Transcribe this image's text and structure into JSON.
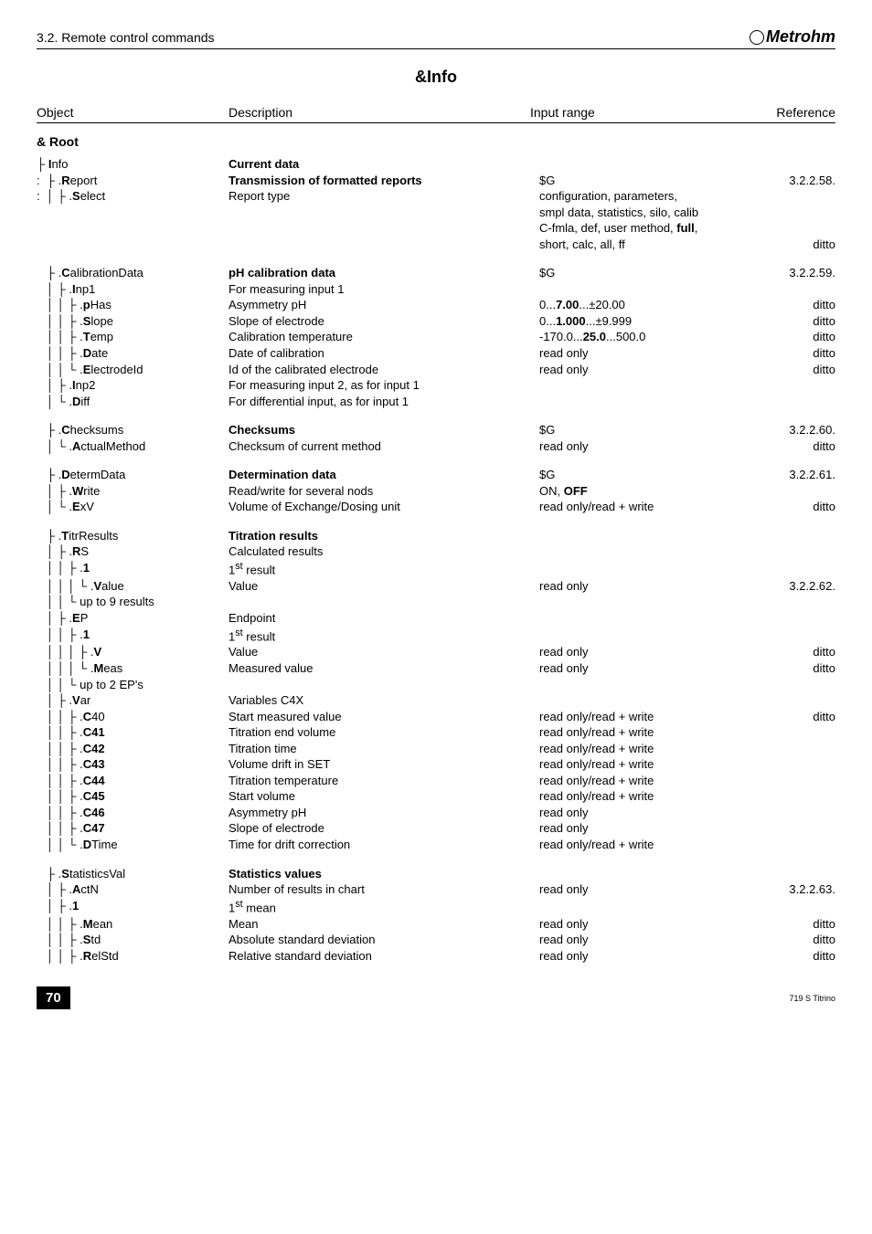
{
  "header": {
    "section_title": "3.2. Remote control commands",
    "brand": "Metrohm"
  },
  "page_title": "&Info",
  "columns": {
    "object": "Object",
    "description": "Description",
    "input_range": "Input range",
    "reference": "Reference"
  },
  "root_label": "& Root",
  "blocks": [
    {
      "rows": [
        {
          "obj_html": "├ <b>I</b>nfo",
          "desc_html": "<b>Current data</b>",
          "range": "",
          "ref": ""
        },
        {
          "obj_html": ":  ├ .<b>R</b>eport",
          "desc_html": "<b>Transmission of formatted reports</b>",
          "range": "$G",
          "ref": "3.2.2.58."
        },
        {
          "obj_html": ":  │ ├ .<b>S</b>elect",
          "desc_html": "Report type",
          "range": "configuration, parameters,",
          "ref": ""
        },
        {
          "obj_html": "",
          "desc_html": "",
          "range": "smpl data, statistics, silo, calib",
          "ref": ""
        },
        {
          "obj_html": "",
          "desc_html": "",
          "range_html": "C-fmla, def, user method, <b>full</b>,",
          "ref": ""
        },
        {
          "obj_html": "",
          "desc_html": "",
          "range": "short, calc, all, ff",
          "ref": "ditto"
        }
      ]
    },
    {
      "rows": [
        {
          "obj_html": "   ├ .<b>C</b>alibrationData",
          "desc_html": "<b>pH calibration data</b>",
          "range": "$G",
          "ref": "3.2.2.59."
        },
        {
          "obj_html": "   │ ├ .<b>I</b>np1",
          "desc_html": "For measuring input 1",
          "range": "",
          "ref": ""
        },
        {
          "obj_html": "   │ │ ├ .<b>p</b>Has",
          "desc_html": "Asymmetry pH",
          "range_html": "0...<b>7.00</b>...±20.00",
          "ref": "ditto"
        },
        {
          "obj_html": "   │ │ ├ .<b>S</b>lope",
          "desc_html": "Slope of electrode",
          "range_html": "0...<b>1.000</b>...±9.999",
          "ref": "ditto"
        },
        {
          "obj_html": "   │ │ ├ .<b>T</b>emp",
          "desc_html": "Calibration temperature",
          "range_html": "-170.0...<b>25.0</b>...500.0",
          "ref": "ditto"
        },
        {
          "obj_html": "   │ │ ├ .<b>D</b>ate",
          "desc_html": "Date of calibration",
          "range": "read only",
          "ref": "ditto"
        },
        {
          "obj_html": "   │ │ └ .<b>E</b>lectrodeId",
          "desc_html": "Id of the calibrated electrode",
          "range": "read only",
          "ref": "ditto"
        },
        {
          "obj_html": "   │ ├ .<b>I</b>np2",
          "desc_html": "For measuring input 2, as for input 1",
          "range": "",
          "ref": ""
        },
        {
          "obj_html": "   │ └ .<b>D</b>iff",
          "desc_html": "For differential input, as for input 1",
          "range": "",
          "ref": ""
        }
      ]
    },
    {
      "rows": [
        {
          "obj_html": "   ├ .<b>C</b>hecksums",
          "desc_html": "<b>Checksums</b>",
          "range": "$G",
          "ref": "3.2.2.60."
        },
        {
          "obj_html": "   │ └ .<b>A</b>ctualMethod",
          "desc_html": "Checksum of current method",
          "range": "read only",
          "ref": "ditto"
        }
      ]
    },
    {
      "rows": [
        {
          "obj_html": "   ├ .<b>D</b>etermData",
          "desc_html": "<b>Determination data</b>",
          "range": "$G",
          "ref": "3.2.2.61."
        },
        {
          "obj_html": "   │ ├ .<b>W</b>rite",
          "desc_html": "Read/write for several nods",
          "range_html": "ON, <b>OFF</b>",
          "ref": ""
        },
        {
          "obj_html": "   │ └ .<b>E</b>xV",
          "desc_html": "Volume of Exchange/Dosing unit",
          "range": "read only/read + write",
          "ref": "ditto"
        }
      ]
    },
    {
      "rows": [
        {
          "obj_html": "   ├ .<b>T</b>itrResults",
          "desc_html": "<b>Titration results</b>",
          "range": "",
          "ref": ""
        },
        {
          "obj_html": "   │ ├ .<b>R</b>S",
          "desc_html": "Calculated results",
          "range": "",
          "ref": ""
        },
        {
          "obj_html": "   │ │ ├ .<b>1</b>",
          "desc_html": "1<sup>st</sup> result",
          "range": "",
          "ref": ""
        },
        {
          "obj_html": "   │ │ │ └ .<b>V</b>alue",
          "desc_html": "Value",
          "range": "read only",
          "ref": "3.2.2.62."
        },
        {
          "obj_html": "   │ │ └ up to 9 results",
          "desc_html": "",
          "range": "",
          "ref": ""
        },
        {
          "obj_html": "   │ ├ .<b>E</b>P",
          "desc_html": "Endpoint",
          "range": "",
          "ref": ""
        },
        {
          "obj_html": "   │ │ ├ .<b>1</b>",
          "desc_html": "1<sup>st</sup> result",
          "range": "",
          "ref": ""
        },
        {
          "obj_html": "   │ │ │ ├ .<b>V</b>",
          "desc_html": "Value",
          "range": "read only",
          "ref": "ditto"
        },
        {
          "obj_html": "   │ │ │ └ .<b>M</b>eas",
          "desc_html": "Measured value",
          "range": "read only",
          "ref": "ditto"
        },
        {
          "obj_html": "   │ │ └ up to 2 EP's",
          "desc_html": "",
          "range": "",
          "ref": ""
        },
        {
          "obj_html": "   │ ├ .<b>V</b>ar",
          "desc_html": "Variables C4X",
          "range": "",
          "ref": ""
        },
        {
          "obj_html": "   │ │ ├ .<b>C</b>40",
          "desc_html": "Start measured value",
          "range": "read only/read + write",
          "ref": "ditto"
        },
        {
          "obj_html": "   │ │ ├ .<b>C41</b>",
          "desc_html": "Titration end volume",
          "range": "read only/read + write",
          "ref": ""
        },
        {
          "obj_html": "   │ │ ├ .<b>C42</b>",
          "desc_html": "Titration time",
          "range": "read only/read + write",
          "ref": ""
        },
        {
          "obj_html": "   │ │ ├ .<b>C43</b>",
          "desc_html": "Volume drift in SET",
          "range": "read only/read + write",
          "ref": ""
        },
        {
          "obj_html": "   │ │ ├ .<b>C44</b>",
          "desc_html": "Titration temperature",
          "range": "read only/read + write",
          "ref": ""
        },
        {
          "obj_html": "   │ │ ├ .<b>C45</b>",
          "desc_html": "Start volume",
          "range": "read only/read + write",
          "ref": ""
        },
        {
          "obj_html": "   │ │ ├ .<b>C46</b>",
          "desc_html": "Asymmetry pH",
          "range": "read only",
          "ref": ""
        },
        {
          "obj_html": "   │ │ ├ .<b>C47</b>",
          "desc_html": "Slope of electrode",
          "range": "read only",
          "ref": ""
        },
        {
          "obj_html": "   │ │ └ .<b>D</b>Time",
          "desc_html": "Time for drift correction",
          "range": "read only/read + write",
          "ref": ""
        }
      ]
    },
    {
      "rows": [
        {
          "obj_html": "   ├ .<b>S</b>tatisticsVal",
          "desc_html": "<b>Statistics values</b>",
          "range": "",
          "ref": ""
        },
        {
          "obj_html": "   │ ├ .<b>A</b>ctN",
          "desc_html": "Number of results in chart",
          "range": "read only",
          "ref": "3.2.2.63."
        },
        {
          "obj_html": "   │ ├ .<b>1</b>",
          "desc_html": "1<sup>st</sup> mean",
          "range": "",
          "ref": ""
        },
        {
          "obj_html": "   │ │ ├ .<b>M</b>ean",
          "desc_html": "Mean",
          "range": "read only",
          "ref": "ditto"
        },
        {
          "obj_html": "   │ │ ├ .<b>S</b>td",
          "desc_html": "Absolute standard deviation",
          "range": "read only",
          "ref": "ditto"
        },
        {
          "obj_html": "   │ │ ├ .<b>R</b>elStd",
          "desc_html": "Relative standard deviation",
          "range": "read only",
          "ref": "ditto"
        }
      ]
    }
  ],
  "footer": {
    "page": "70",
    "model": "719 S Titrino"
  }
}
